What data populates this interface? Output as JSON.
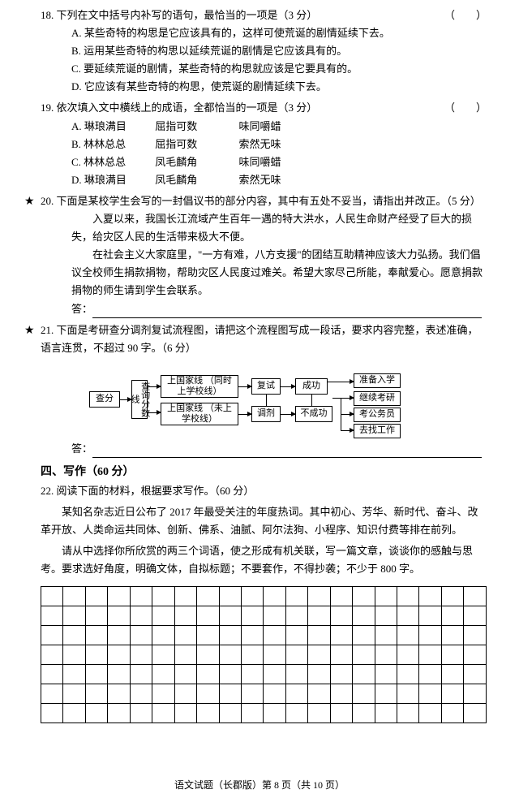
{
  "q18": {
    "stem": "18. 下列在文中括号内补写的语句，最恰当的一项是（3 分）",
    "blank": "（　　）",
    "options": [
      "A. 某些奇特的构思是它应该具有的，这样可使荒诞的剧情延续下去。",
      "B. 运用某些奇特的构思以延续荒诞的剧情是它应该具有的。",
      "C. 要延续荒诞的剧情，某些奇特的构思就应该是它要具有的。",
      "D. 它应该有某些奇特的构思，使荒诞的剧情延续下去。"
    ]
  },
  "q19": {
    "stem": "19. 依次填入文中横线上的成语，全都恰当的一项是（3 分）",
    "blank": "（　　）",
    "rows": [
      {
        "label": "A. 琳琅满目",
        "c1": "屈指可数",
        "c2": "味同嚼蜡"
      },
      {
        "label": "B. 林林总总",
        "c1": "屈指可数",
        "c2": "索然无味"
      },
      {
        "label": "C. 林林总总",
        "c1": "凤毛麟角",
        "c2": "味同嚼蜡"
      },
      {
        "label": "D. 琳琅满目",
        "c1": "凤毛麟角",
        "c2": "索然无味"
      }
    ]
  },
  "q20": {
    "stem": "20. 下面是某校学生会写的一封倡议书的部分内容，其中有五处不妥当，请指出并改正。（5 分）",
    "para1": "入夏以来，我国长江流域产生百年一遇的特大洪水，人民生命财产经受了巨大的损失，给灾区人民的生活带来极大不便。",
    "para2": "在社会主义大家庭里，\"一方有难，八方支援\"的团结互助精神应该大力弘扬。我们倡议全校师生捐款捐物，帮助灾区人民度过难关。希望大家尽己所能，奉献爱心。愿意捐款捐物的师生请到学生会联系。",
    "answer_label": "答："
  },
  "q21": {
    "stem": "21. 下面是考研查分调剂复试流程图，请把这个流程图写成一段话，要求内容完整，表述准确，语言连贯，不超过 90 字。（6 分）",
    "answer_label": "答：",
    "flow": {
      "chaFen": "查分",
      "chaXunFenShuXian": "查询分数线",
      "topLine": "上国家线\n（同时上学校线）",
      "botLine": "上国家线\n（未上学校线）",
      "fuShi": "复试",
      "tiaoJi": "调剂",
      "chengGong": "成功",
      "buChengGong": "不成功",
      "zhunBei": "准备入学",
      "jiXu": "继续考研",
      "gongWuYuan": "考公务员",
      "zhaoGongZuo": "去找工作"
    }
  },
  "section4": "四、写作（60 分）",
  "q22": {
    "stem": "22. 阅读下面的材料，根据要求写作。（60 分）",
    "p1": "某知名杂志近日公布了 2017 年最受关注的年度热词。其中初心、芳华、新时代、奋斗、改革开放、人类命运共同体、创新、佛系、油腻、阿尔法狗、小程序、知识付费等排在前列。",
    "p2": "请从中选择你所欣赏的两三个词语，使之形成有机关联，写一篇文章，谈谈你的感触与思考。要求选好角度，明确文体，自拟标题；不要套作，不得抄袭；不少于 800 字。"
  },
  "footer": "语文试题（长郡版）第 8 页（共 10 页）",
  "grid": {
    "rows": 7,
    "cols": 20
  }
}
